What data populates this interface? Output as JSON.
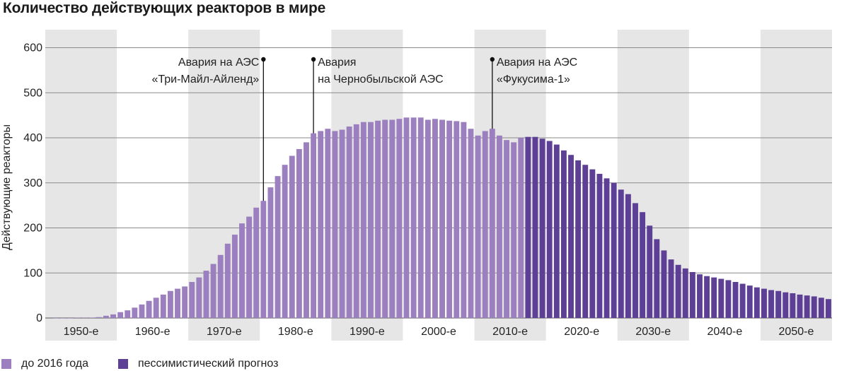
{
  "chart_data": {
    "type": "bar",
    "title": "Количество действующих реакторов в мире",
    "ylabel": "Действующие реакторы",
    "xlabel": "",
    "ylim": [
      0,
      640
    ],
    "yticks": [
      0,
      100,
      200,
      300,
      400,
      500,
      600
    ],
    "xlim": [
      1949,
      2059
    ],
    "decades": [
      "1950-е",
      "1960-е",
      "1970-е",
      "1980-е",
      "1990-е",
      "2000-е",
      "2010-е",
      "2020-е",
      "2030-е",
      "2040-е",
      "2050-е"
    ],
    "grid": true,
    "legend_placement": "bottom-left",
    "series": [
      {
        "name": "до 2016 года",
        "color": "#9b7fbf",
        "x": [
          1950,
          1951,
          1952,
          1953,
          1954,
          1955,
          1956,
          1957,
          1958,
          1959,
          1960,
          1961,
          1962,
          1963,
          1964,
          1965,
          1966,
          1967,
          1968,
          1969,
          1970,
          1971,
          1972,
          1973,
          1974,
          1975,
          1976,
          1977,
          1978,
          1979,
          1980,
          1981,
          1982,
          1983,
          1984,
          1985,
          1986,
          1987,
          1988,
          1989,
          1990,
          1991,
          1992,
          1993,
          1994,
          1995,
          1996,
          1997,
          1998,
          1999,
          2000,
          2001,
          2002,
          2003,
          2004,
          2005,
          2006,
          2007,
          2008,
          2009,
          2010,
          2011,
          2012,
          2013,
          2014,
          2015
        ],
        "values": [
          0,
          0,
          0,
          1,
          1,
          1,
          2,
          5,
          8,
          13,
          17,
          23,
          30,
          38,
          45,
          52,
          60,
          65,
          70,
          80,
          90,
          105,
          120,
          140,
          165,
          185,
          210,
          225,
          245,
          260,
          290,
          315,
          340,
          360,
          375,
          390,
          410,
          415,
          420,
          415,
          418,
          425,
          430,
          435,
          435,
          438,
          440,
          440,
          442,
          445,
          445,
          445,
          440,
          442,
          440,
          438,
          437,
          435,
          420,
          405,
          415,
          420,
          405,
          395,
          390,
          400
        ]
      },
      {
        "name": "пессимистический прогноз",
        "color": "#5e3f96",
        "x": [
          2016,
          2017,
          2018,
          2019,
          2020,
          2021,
          2022,
          2023,
          2024,
          2025,
          2026,
          2027,
          2028,
          2029,
          2030,
          2031,
          2032,
          2033,
          2034,
          2035,
          2036,
          2037,
          2038,
          2039,
          2040,
          2041,
          2042,
          2043,
          2044,
          2045,
          2046,
          2047,
          2048,
          2049,
          2050,
          2051,
          2052,
          2053,
          2054,
          2055,
          2056,
          2057,
          2058
        ],
        "values": [
          402,
          402,
          398,
          393,
          385,
          372,
          362,
          350,
          340,
          330,
          320,
          310,
          300,
          285,
          275,
          255,
          235,
          205,
          175,
          150,
          130,
          118,
          110,
          102,
          97,
          93,
          90,
          87,
          84,
          80,
          76,
          72,
          68,
          65,
          62,
          60,
          57,
          55,
          52,
          50,
          48,
          45,
          42
        ]
      }
    ],
    "annotations": [
      {
        "line1": "Авария на АЭС",
        "line2": "«Три-Майл-Айленд»",
        "year": 1979,
        "align": "end"
      },
      {
        "line1": "Авария",
        "line2": "на Чернобыльской АЭС",
        "year": 1986,
        "align": "start"
      },
      {
        "line1": "Авария на АЭС",
        "line2": "«Фукусима-1»",
        "year": 2011,
        "align": "start"
      }
    ]
  },
  "legend": [
    {
      "label": "до 2016 года",
      "color": "#9b7fbf"
    },
    {
      "label": "пессимистический прогноз",
      "color": "#5e3f96"
    }
  ]
}
